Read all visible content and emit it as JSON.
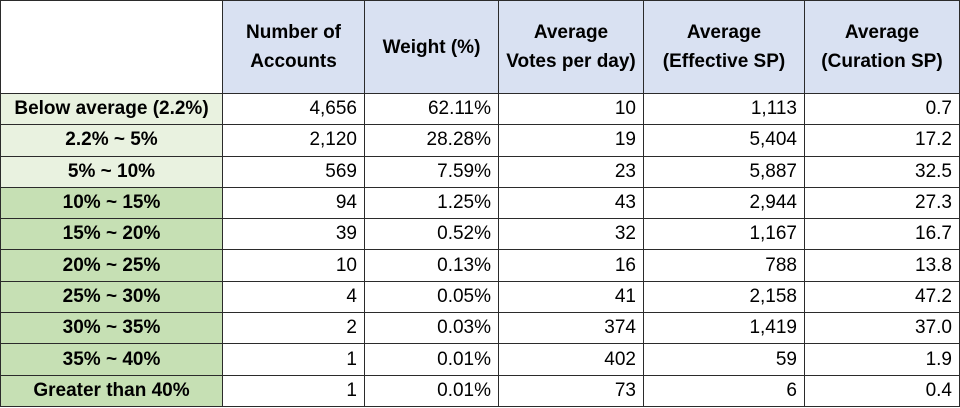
{
  "chart_data": {
    "type": "table",
    "columns": [
      "",
      "Number of Accounts",
      "Weight (%)",
      "Average Votes per day",
      "Average (Effective SP)",
      "Average (Curation SP)"
    ],
    "header_lines": [
      [],
      [
        "Number of",
        "Accounts"
      ],
      [
        "Weight (%)"
      ],
      [
        "Average",
        "Votes per day)"
      ],
      [
        "Average",
        "(Effective SP)"
      ],
      [
        "Average",
        "(Curation SP)"
      ]
    ],
    "rows": [
      {
        "label": "Below average (2.2%)",
        "shade": "light",
        "cells": [
          "4,656",
          "62.11%",
          "10",
          "1,113",
          "0.7"
        ]
      },
      {
        "label": "2.2% ~ 5%",
        "shade": "light",
        "cells": [
          "2,120",
          "28.28%",
          "19",
          "5,404",
          "17.2"
        ]
      },
      {
        "label": "5% ~ 10%",
        "shade": "light",
        "cells": [
          "569",
          "7.59%",
          "23",
          "5,887",
          "32.5"
        ]
      },
      {
        "label": "10% ~ 15%",
        "shade": "dark",
        "cells": [
          "94",
          "1.25%",
          "43",
          "2,944",
          "27.3"
        ]
      },
      {
        "label": "15% ~ 20%",
        "shade": "dark",
        "cells": [
          "39",
          "0.52%",
          "32",
          "1,167",
          "16.7"
        ]
      },
      {
        "label": "20% ~ 25%",
        "shade": "dark",
        "cells": [
          "10",
          "0.13%",
          "16",
          "788",
          "13.8"
        ]
      },
      {
        "label": "25% ~ 30%",
        "shade": "dark",
        "cells": [
          "4",
          "0.05%",
          "41",
          "2,158",
          "47.2"
        ]
      },
      {
        "label": "30% ~ 35%",
        "shade": "dark",
        "cells": [
          "2",
          "0.03%",
          "374",
          "1,419",
          "37.0"
        ]
      },
      {
        "label": "35% ~ 40%",
        "shade": "dark",
        "cells": [
          "1",
          "0.01%",
          "402",
          "59",
          "1.9"
        ]
      },
      {
        "label": "Greater than 40%",
        "shade": "dark",
        "cells": [
          "1",
          "0.01%",
          "73",
          "6",
          "0.4"
        ]
      }
    ],
    "colors": {
      "header_bg": "#d9e1f2",
      "label_light_bg": "#e9f2e0",
      "label_dark_bg": "#c6e0b4",
      "border": "#2b2b2b"
    }
  }
}
